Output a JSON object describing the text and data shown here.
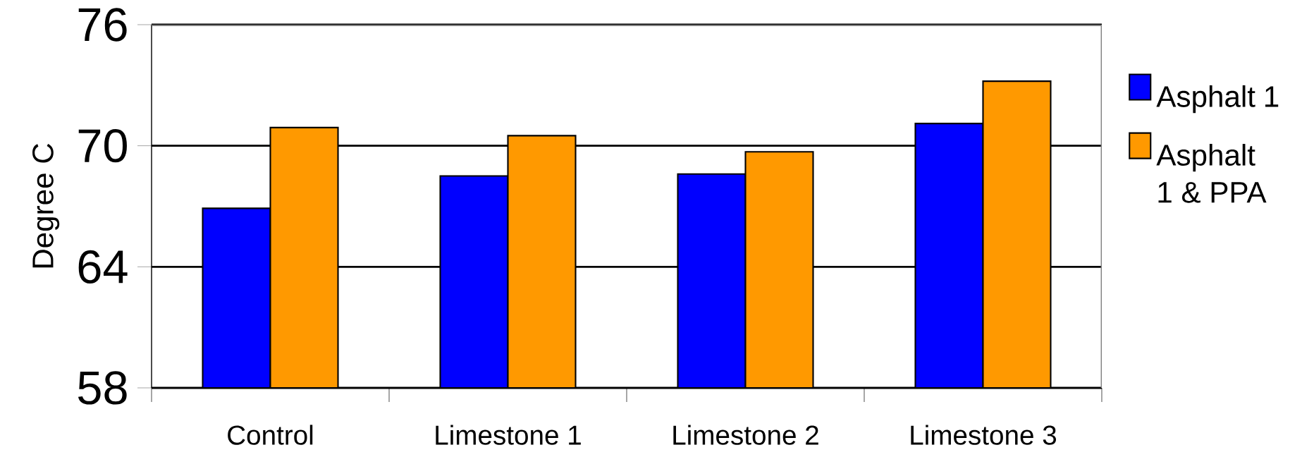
{
  "chart_data": {
    "type": "bar",
    "ylabel": "Degree C",
    "categories": [
      "Control",
      "Limestone 1",
      "Limestone 2",
      "Limestone 3"
    ],
    "series": [
      {
        "name": "Asphalt 1",
        "color": "#0000ff",
        "values": [
          66.9,
          68.5,
          68.6,
          71.1
        ]
      },
      {
        "name": "Asphalt 1 & PPA",
        "color": "#ff9900",
        "values": [
          70.9,
          70.5,
          69.7,
          73.2
        ]
      }
    ],
    "ylim": [
      58,
      76
    ],
    "yticks": [
      58,
      64,
      70,
      76
    ],
    "grid": "y",
    "legend": "right"
  }
}
